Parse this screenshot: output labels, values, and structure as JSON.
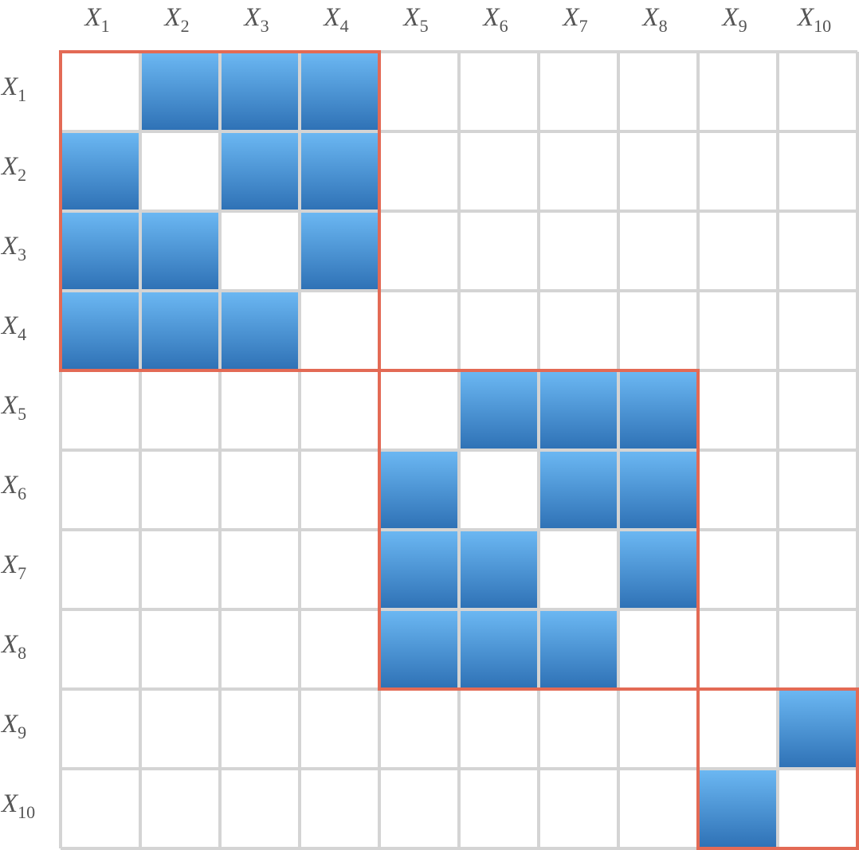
{
  "matrix": {
    "col_labels": [
      {
        "base": "X",
        "sub": "1"
      },
      {
        "base": "X",
        "sub": "2"
      },
      {
        "base": "X",
        "sub": "3"
      },
      {
        "base": "X",
        "sub": "4"
      },
      {
        "base": "X",
        "sub": "5"
      },
      {
        "base": "X",
        "sub": "6"
      },
      {
        "base": "X",
        "sub": "7"
      },
      {
        "base": "X",
        "sub": "8"
      },
      {
        "base": "X",
        "sub": "9"
      },
      {
        "base": "X",
        "sub": "10"
      }
    ],
    "row_labels": [
      {
        "base": "X",
        "sub": "1"
      },
      {
        "base": "X",
        "sub": "2"
      },
      {
        "base": "X",
        "sub": "3"
      },
      {
        "base": "X",
        "sub": "4"
      },
      {
        "base": "X",
        "sub": "5"
      },
      {
        "base": "X",
        "sub": "6"
      },
      {
        "base": "X",
        "sub": "7"
      },
      {
        "base": "X",
        "sub": "8"
      },
      {
        "base": "X",
        "sub": "9"
      },
      {
        "base": "X",
        "sub": "10"
      }
    ],
    "cells": [
      [
        0,
        1,
        1,
        1,
        0,
        0,
        0,
        0,
        0,
        0
      ],
      [
        1,
        0,
        1,
        1,
        0,
        0,
        0,
        0,
        0,
        0
      ],
      [
        1,
        1,
        0,
        1,
        0,
        0,
        0,
        0,
        0,
        0
      ],
      [
        1,
        1,
        1,
        0,
        0,
        0,
        0,
        0,
        0,
        0
      ],
      [
        0,
        0,
        0,
        0,
        0,
        1,
        1,
        1,
        0,
        0
      ],
      [
        0,
        0,
        0,
        0,
        1,
        0,
        1,
        1,
        0,
        0
      ],
      [
        0,
        0,
        0,
        0,
        1,
        1,
        0,
        1,
        0,
        0
      ],
      [
        0,
        0,
        0,
        0,
        1,
        1,
        1,
        0,
        0,
        0
      ],
      [
        0,
        0,
        0,
        0,
        0,
        0,
        0,
        0,
        0,
        1
      ],
      [
        0,
        0,
        0,
        0,
        0,
        0,
        0,
        0,
        1,
        0
      ]
    ],
    "blocks": [
      {
        "start": 1,
        "end": 4
      },
      {
        "start": 5,
        "end": 8
      },
      {
        "start": 9,
        "end": 10
      }
    ],
    "colors": {
      "filled_top": "#6bb7f2",
      "filled_bottom": "#2f72b6",
      "grid_line": "#d4d4d4",
      "block_border": "#e36a55",
      "label": "#555555"
    }
  }
}
